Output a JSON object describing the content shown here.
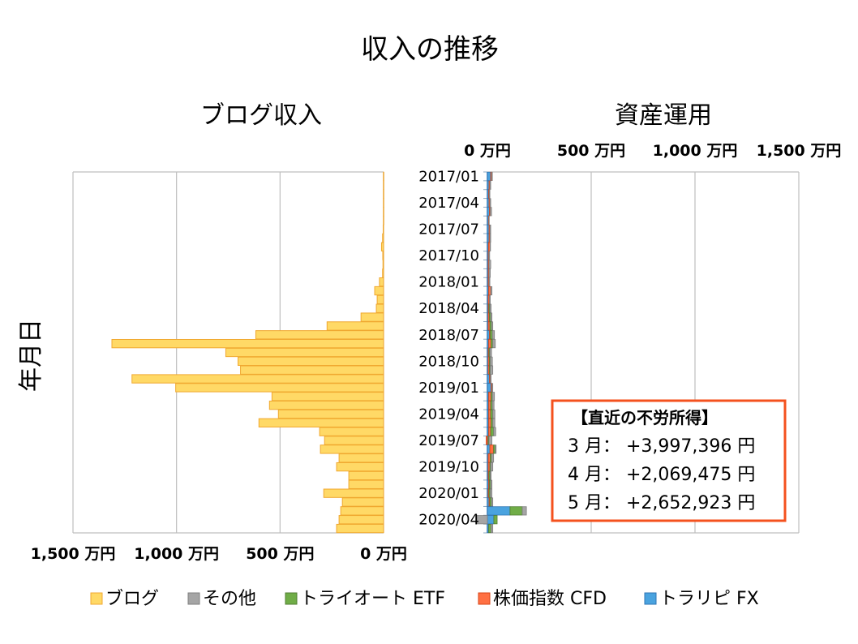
{
  "chart_data": {
    "type": "bar",
    "orientation": "horizontal",
    "title": "収入の推移",
    "ylabel": "年月日",
    "legend": {
      "placement": "bottom",
      "entries": [
        {
          "name": "ブログ",
          "color": "#FFD966"
        },
        {
          "name": "その他",
          "color": "#A5A5A5"
        },
        {
          "name": "トライオート ETF",
          "color": "#70AD47"
        },
        {
          "name": "株価指数 CFD",
          "color": "#FF7043"
        },
        {
          "name": "トラリピ FX",
          "color": "#4AA3DF"
        }
      ]
    },
    "categories": [
      "2017/01",
      "2017/02",
      "2017/03",
      "2017/04",
      "2017/05",
      "2017/06",
      "2017/07",
      "2017/08",
      "2017/09",
      "2017/10",
      "2017/11",
      "2017/12",
      "2018/01",
      "2018/02",
      "2018/03",
      "2018/04",
      "2018/05",
      "2018/06",
      "2018/07",
      "2018/08",
      "2018/09",
      "2018/10",
      "2018/11",
      "2018/12",
      "2019/01",
      "2019/02",
      "2019/03",
      "2019/04",
      "2019/05",
      "2019/06",
      "2019/07",
      "2019/08",
      "2019/09",
      "2019/10",
      "2019/11",
      "2019/12",
      "2020/01",
      "2020/02",
      "2020/03",
      "2020/04",
      "2020/05"
    ],
    "category_tick_labels": [
      "2017/01",
      "2017/04",
      "2017/07",
      "2017/10",
      "2018/01",
      "2018/04",
      "2018/07",
      "2018/10",
      "2019/01",
      "2019/04",
      "2019/07",
      "2019/10",
      "2020/01",
      "2020/04"
    ],
    "left_panel": {
      "subtitle": "ブログ収入",
      "xlim": [
        0,
        1500
      ],
      "xaxis_reversed": true,
      "tick_labels": [
        "1,500 万円",
        "1,000 万円",
        "500 万円",
        "0 万円"
      ],
      "tick_values": [
        1500,
        1000,
        500,
        0
      ],
      "series": [
        {
          "name": "ブログ",
          "values": [
            1,
            1,
            1,
            1,
            1,
            1,
            2,
            5,
            10,
            4,
            3,
            5,
            20,
            43,
            31,
            35,
            109,
            273,
            617,
            1312,
            762,
            703,
            691,
            1215,
            1004,
            539,
            551,
            508,
            602,
            309,
            285,
            305,
            215,
            227,
            168,
            168,
            289,
            199,
            207,
            215,
            227
          ]
        }
      ]
    },
    "right_panel": {
      "subtitle": "資産運用",
      "xlim": [
        0,
        1500
      ],
      "tick_labels": [
        "0 万円",
        "500 万円",
        "1,000 万円",
        "1,500 万円"
      ],
      "tick_values": [
        0,
        500,
        1000,
        1500
      ],
      "stacked": true,
      "series": [
        {
          "name": "トラリピ FX",
          "values": [
            16,
            8,
            6,
            8,
            10,
            5,
            8,
            8,
            5,
            4,
            4,
            4,
            4,
            6,
            4,
            4,
            4,
            4,
            10,
            6,
            4,
            4,
            4,
            10,
            18,
            6,
            6,
            6,
            6,
            6,
            4,
            12,
            4,
            4,
            4,
            6,
            4,
            8,
            109,
            31,
            6
          ]
        },
        {
          "name": "株価指数 CFD",
          "values": [
            4,
            4,
            3,
            4,
            4,
            2,
            4,
            4,
            8,
            3,
            4,
            4,
            4,
            10,
            6,
            4,
            6,
            8,
            4,
            12,
            4,
            6,
            6,
            4,
            4,
            12,
            10,
            10,
            12,
            10,
            -6,
            18,
            10,
            8,
            4,
            4,
            4,
            4,
            0,
            0,
            0
          ]
        },
        {
          "name": "トライオート ETF",
          "values": [
            0,
            0,
            0,
            0,
            0,
            0,
            0,
            0,
            0,
            0,
            0,
            0,
            0,
            0,
            0,
            4,
            6,
            8,
            10,
            8,
            4,
            4,
            4,
            0,
            0,
            6,
            8,
            10,
            8,
            14,
            4,
            8,
            6,
            4,
            6,
            6,
            6,
            8,
            59,
            16,
            12
          ]
        },
        {
          "name": "その他",
          "values": [
            4,
            4,
            3,
            4,
            6,
            2,
            4,
            4,
            2,
            4,
            8,
            6,
            4,
            6,
            4,
            6,
            6,
            6,
            10,
            12,
            8,
            10,
            12,
            4,
            4,
            10,
            8,
            10,
            10,
            10,
            14,
            4,
            10,
            10,
            4,
            6,
            8,
            6,
            20,
            -51,
            8
          ]
        }
      ]
    },
    "annotation": {
      "title": "【直近の不労所得】",
      "lines": [
        "3 月： +3,997,396 円",
        "4 月： +2,069,475 円",
        "5 月： +2,652,923 円"
      ],
      "border_color": "#F4511E"
    },
    "grid": true
  }
}
